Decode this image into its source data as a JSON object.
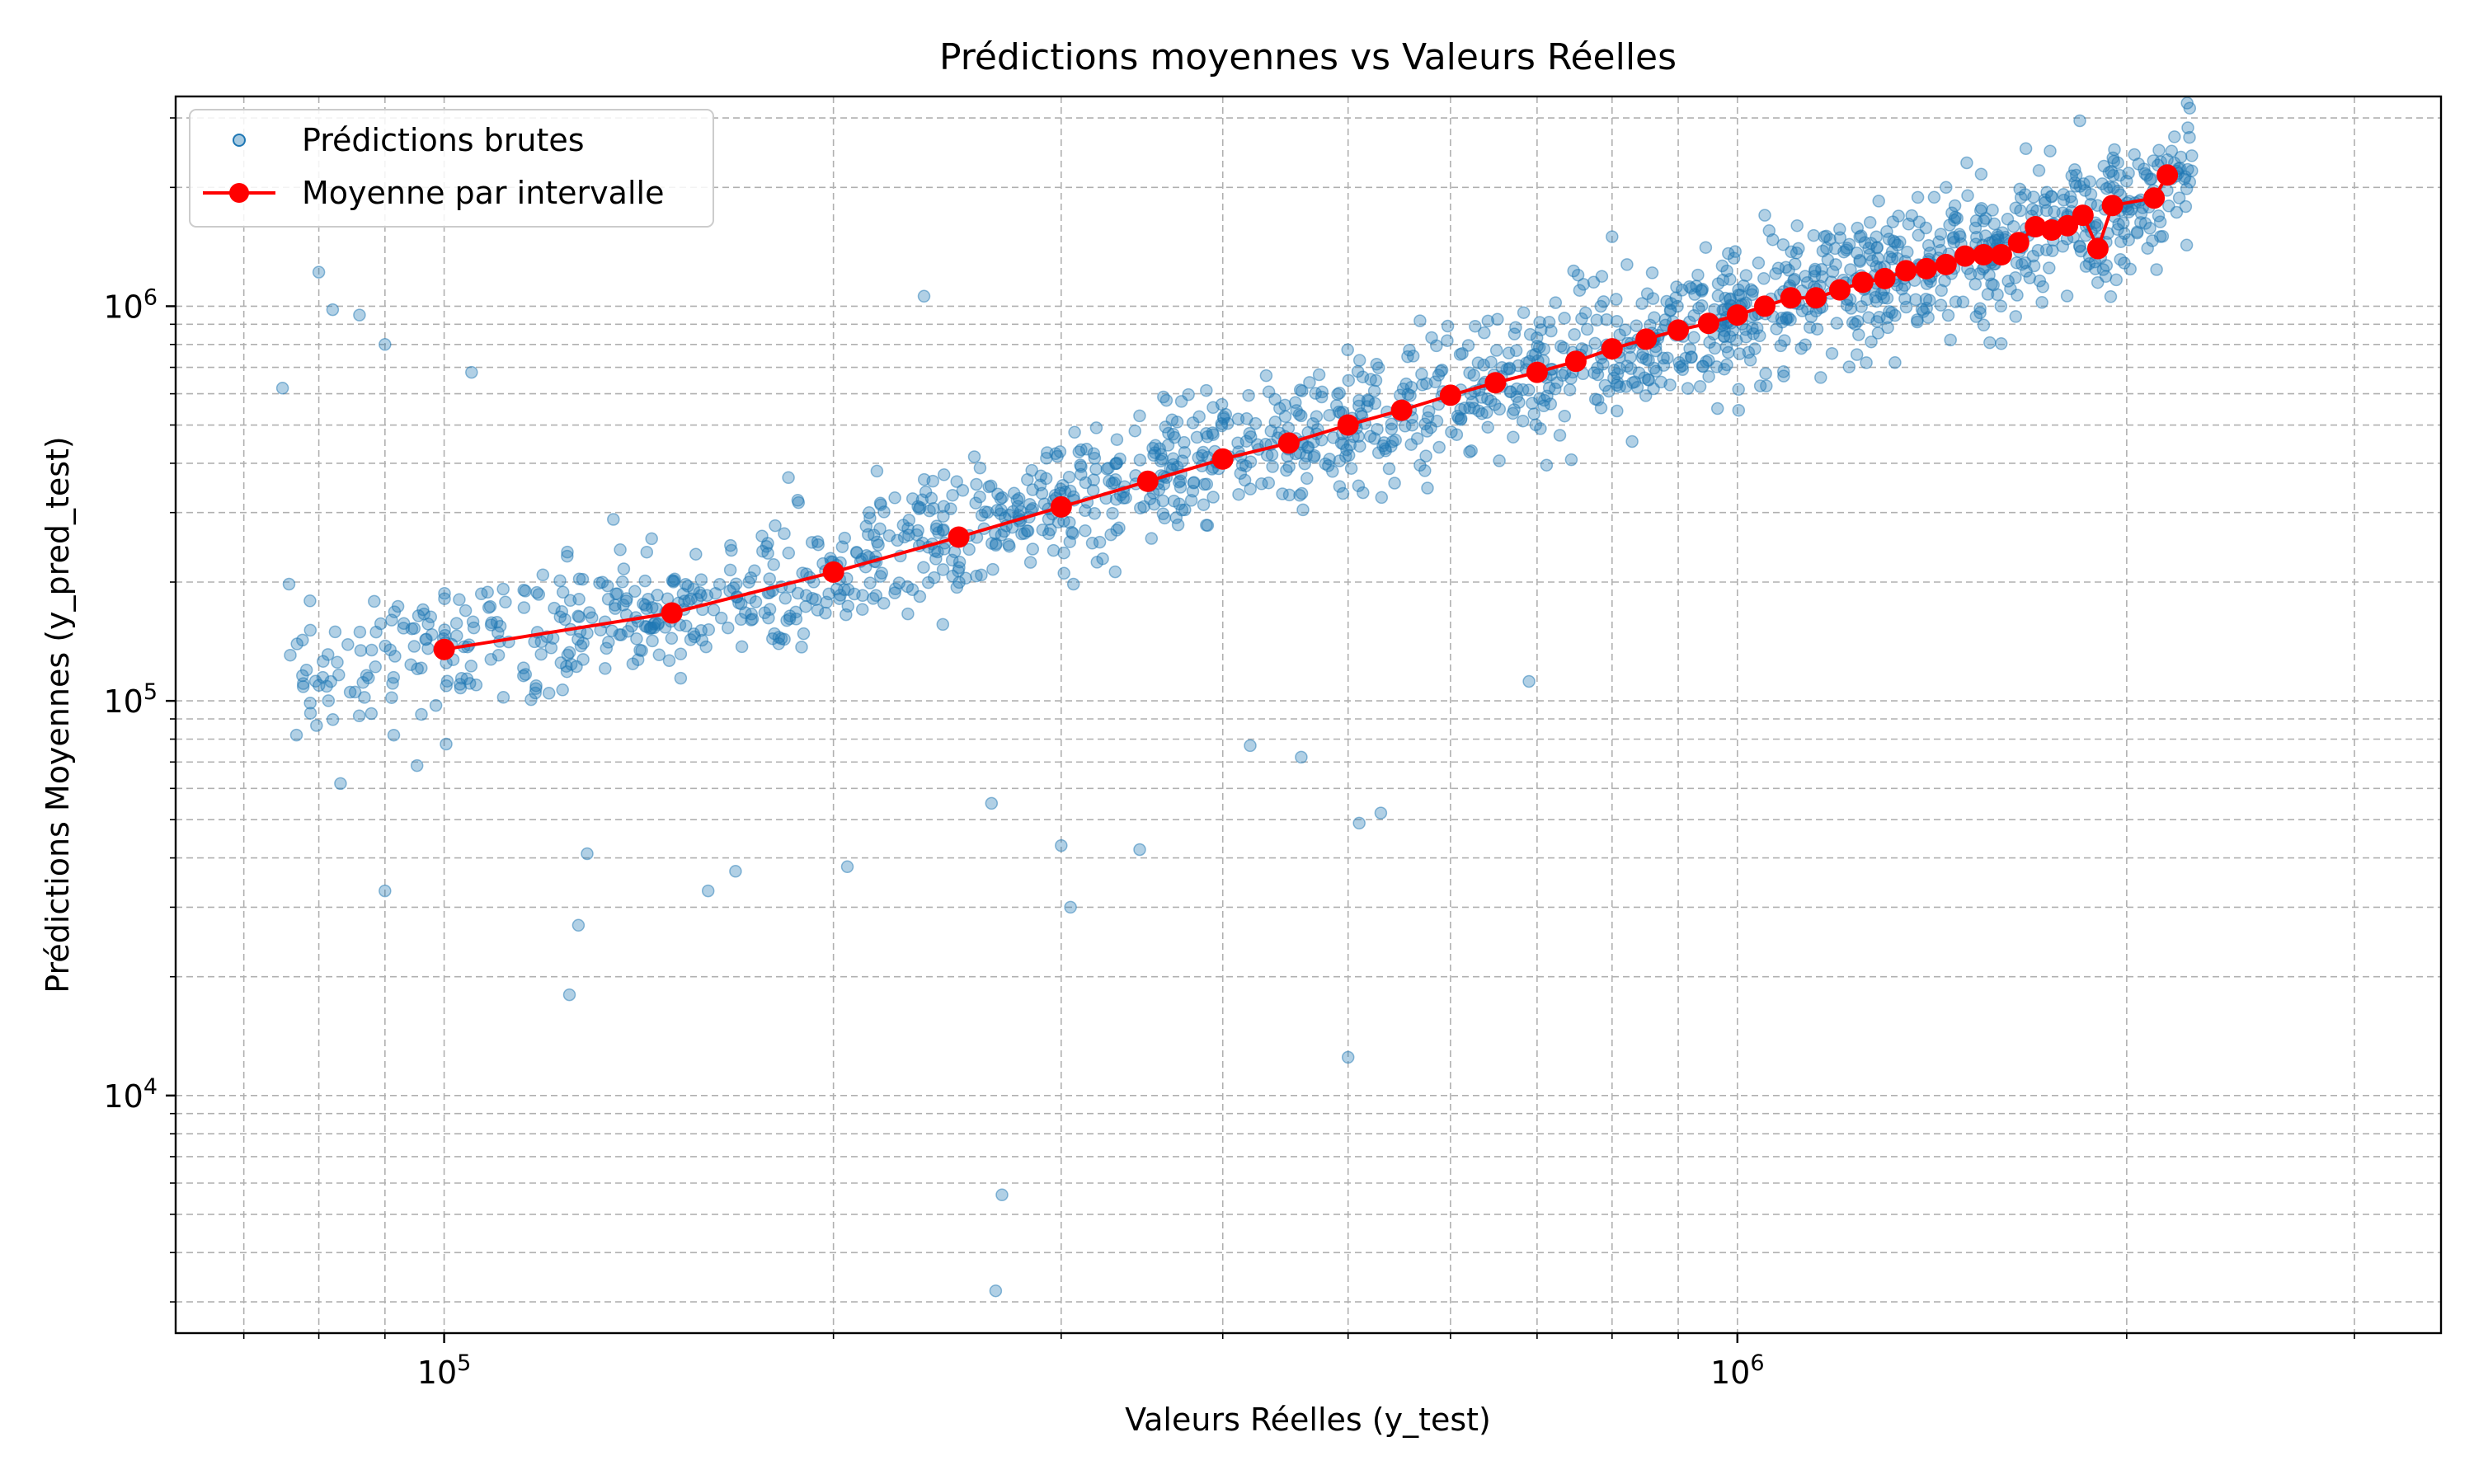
{
  "chart_data": {
    "type": "scatter",
    "title": "Prédictions moyennes vs Valeurs Réelles",
    "xlabel": "Valeurs Réelles (y_test)",
    "ylabel": "Prédictions Moyennes (y_pred_test)",
    "xscale": "log",
    "yscale": "log",
    "xlim": [
      62000,
      3500000
    ],
    "ylim": [
      2500,
      3400000
    ],
    "grid": true,
    "legend_position": "top-left",
    "colors": {
      "scatter": "#1f77b4",
      "mean_line": "#ff0000"
    },
    "x_ticks": [
      {
        "value": 100000,
        "base": "10",
        "exp": "5"
      },
      {
        "value": 1000000,
        "base": "10",
        "exp": "6"
      }
    ],
    "y_ticks": [
      {
        "value": 10000,
        "base": "10",
        "exp": "4"
      },
      {
        "value": 100000,
        "base": "10",
        "exp": "5"
      },
      {
        "value": 1000000,
        "base": "10",
        "exp": "6"
      }
    ],
    "series": [
      {
        "name": "Prédictions brutes",
        "kind": "scatter",
        "trend": "dense cloud roughly following y = x on log axes, x from about 75000 to 2300000",
        "outliers": [
          [
            75000,
            620000
          ],
          [
            80000,
            1220000
          ],
          [
            82000,
            980000
          ],
          [
            86000,
            950000
          ],
          [
            90000,
            800000
          ],
          [
            105000,
            680000
          ],
          [
            125000,
            18000
          ],
          [
            127000,
            27000
          ],
          [
            129000,
            41000
          ],
          [
            90000,
            33000
          ],
          [
            205000,
            38000
          ],
          [
            168000,
            37000
          ],
          [
            160000,
            33000
          ],
          [
            235000,
            1060000
          ],
          [
            265000,
            55000
          ],
          [
            270000,
            5600
          ],
          [
            267000,
            3200
          ],
          [
            305000,
            30000
          ],
          [
            300000,
            43000
          ],
          [
            345000,
            42000
          ],
          [
            420000,
            77000
          ],
          [
            460000,
            72000
          ],
          [
            500000,
            12500
          ],
          [
            510000,
            49000
          ],
          [
            530000,
            52000
          ],
          [
            690000,
            112000
          ],
          [
            800000,
            1500000
          ],
          [
            1050000,
            1700000
          ],
          [
            1450000,
            2000000
          ],
          [
            2150000,
            2350000
          ]
        ]
      },
      {
        "name": "Moyenne par intervalle",
        "kind": "line",
        "points": [
          [
            100000,
            135000
          ],
          [
            150000,
            167000
          ],
          [
            200000,
            212000
          ],
          [
            250000,
            260000
          ],
          [
            300000,
            310000
          ],
          [
            350000,
            360000
          ],
          [
            400000,
            410000
          ],
          [
            450000,
            450000
          ],
          [
            500000,
            500000
          ],
          [
            550000,
            545000
          ],
          [
            600000,
            595000
          ],
          [
            650000,
            640000
          ],
          [
            700000,
            680000
          ],
          [
            750000,
            725000
          ],
          [
            800000,
            780000
          ],
          [
            850000,
            825000
          ],
          [
            900000,
            870000
          ],
          [
            950000,
            905000
          ],
          [
            1000000,
            950000
          ],
          [
            1050000,
            1000000
          ],
          [
            1100000,
            1050000
          ],
          [
            1150000,
            1050000
          ],
          [
            1200000,
            1100000
          ],
          [
            1250000,
            1150000
          ],
          [
            1300000,
            1175000
          ],
          [
            1350000,
            1230000
          ],
          [
            1400000,
            1245000
          ],
          [
            1450000,
            1275000
          ],
          [
            1500000,
            1340000
          ],
          [
            1550000,
            1350000
          ],
          [
            1600000,
            1350000
          ],
          [
            1650000,
            1450000
          ],
          [
            1700000,
            1590000
          ],
          [
            1750000,
            1560000
          ],
          [
            1800000,
            1600000
          ],
          [
            1850000,
            1700000
          ],
          [
            1900000,
            1400000
          ],
          [
            1950000,
            1800000
          ],
          [
            2100000,
            1880000
          ],
          [
            2150000,
            2150000
          ]
        ]
      }
    ]
  }
}
